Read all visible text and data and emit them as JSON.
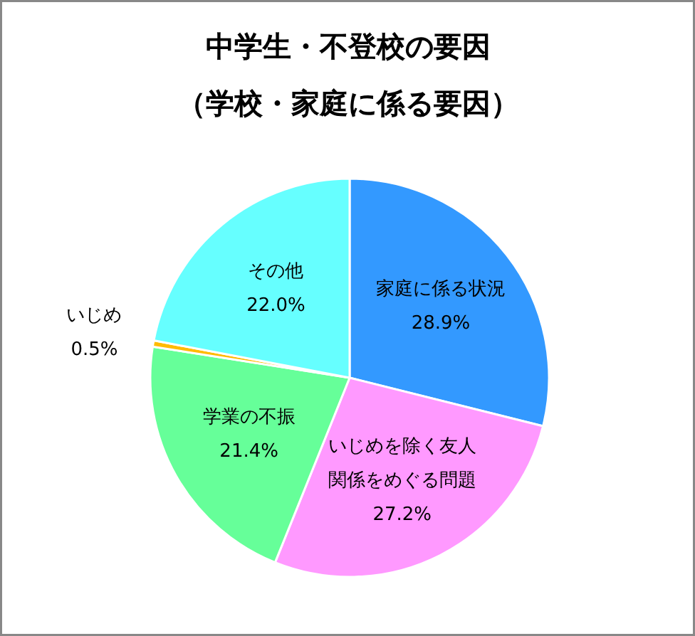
{
  "chart_data": {
    "type": "pie",
    "title": "中学生・不登校の要因",
    "subtitle": "（学校・家庭に係る要因）",
    "categories": [
      "家庭に係る状況",
      "いじめを除く友人関係をめぐる問題",
      "学業の不振",
      "いじめ",
      "その他"
    ],
    "values": [
      28.9,
      27.2,
      21.4,
      0.5,
      22.0
    ],
    "colors": [
      "#3399ff",
      "#ff99ff",
      "#66ff99",
      "#ffbb00",
      "#66ffff"
    ],
    "value_labels": [
      "28.9%",
      "27.2%",
      "21.4%",
      "0.5%",
      "22.0%"
    ]
  }
}
